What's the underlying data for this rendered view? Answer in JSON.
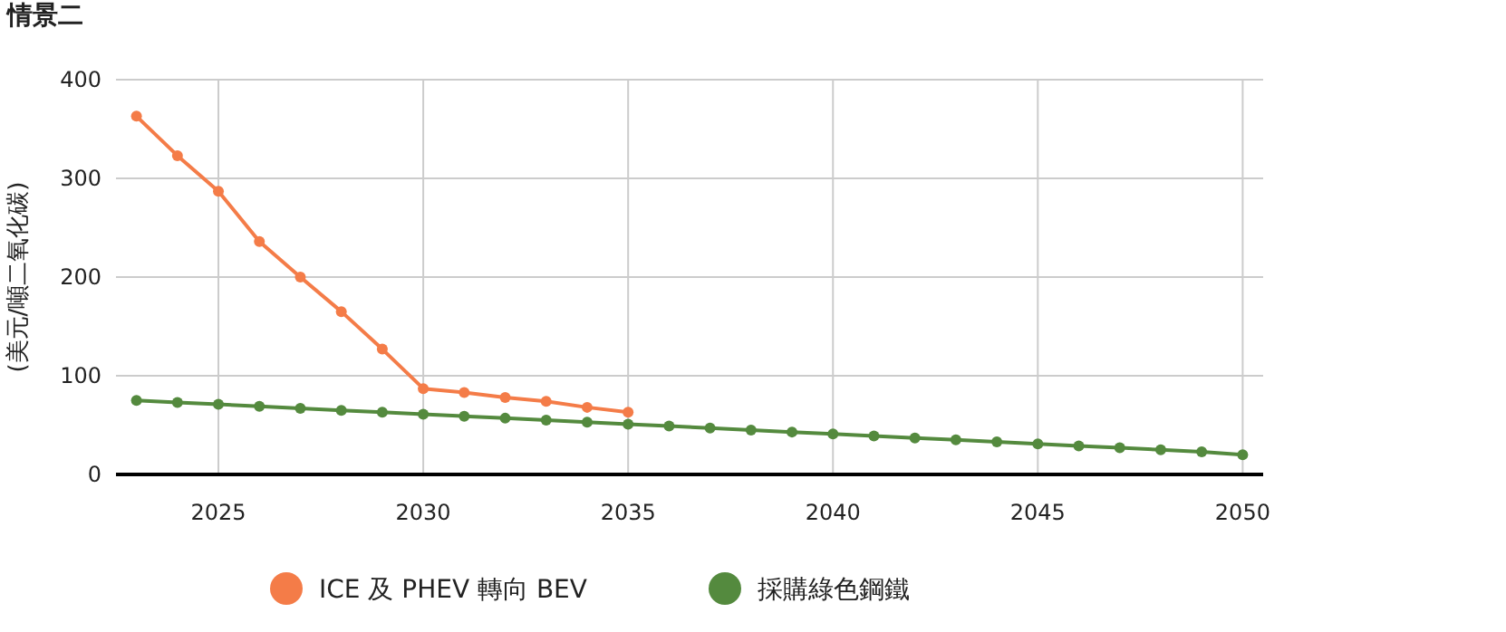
{
  "chart_data": {
    "type": "line",
    "title": "情景二",
    "ylabel": "(美元/噸二氧化碳)",
    "xlim": [
      2022.5,
      2050.5
    ],
    "xticks": [
      2025,
      2030,
      2035,
      2040,
      2045,
      2050
    ],
    "ylim": [
      0,
      400
    ],
    "yticks": [
      0,
      100,
      200,
      300,
      400
    ],
    "grid": true,
    "legend": "bottom",
    "marker": "circle",
    "line_style": "solid",
    "series": [
      {
        "name": "ICE 及 PHEV 轉向 BEV",
        "color": "#f47c48",
        "x": [
          2023,
          2024,
          2025,
          2026,
          2027,
          2028,
          2029,
          2030,
          2031,
          2032,
          2033,
          2034,
          2035
        ],
        "values": [
          363,
          323,
          287,
          236,
          200,
          165,
          127,
          87,
          83,
          78,
          74,
          68,
          63
        ]
      },
      {
        "name": "採購綠色鋼鐵",
        "color": "#548a3e",
        "x": [
          2023,
          2024,
          2025,
          2026,
          2027,
          2028,
          2029,
          2030,
          2031,
          2032,
          2033,
          2034,
          2035,
          2036,
          2037,
          2038,
          2039,
          2040,
          2041,
          2042,
          2043,
          2044,
          2045,
          2046,
          2047,
          2048,
          2049,
          2050
        ],
        "values": [
          75,
          73,
          71,
          69,
          67,
          65,
          63,
          61,
          59,
          57,
          55,
          53,
          51,
          49,
          47,
          45,
          43,
          41,
          39,
          37,
          35,
          33,
          31,
          29,
          27,
          25,
          23,
          20
        ]
      }
    ]
  }
}
